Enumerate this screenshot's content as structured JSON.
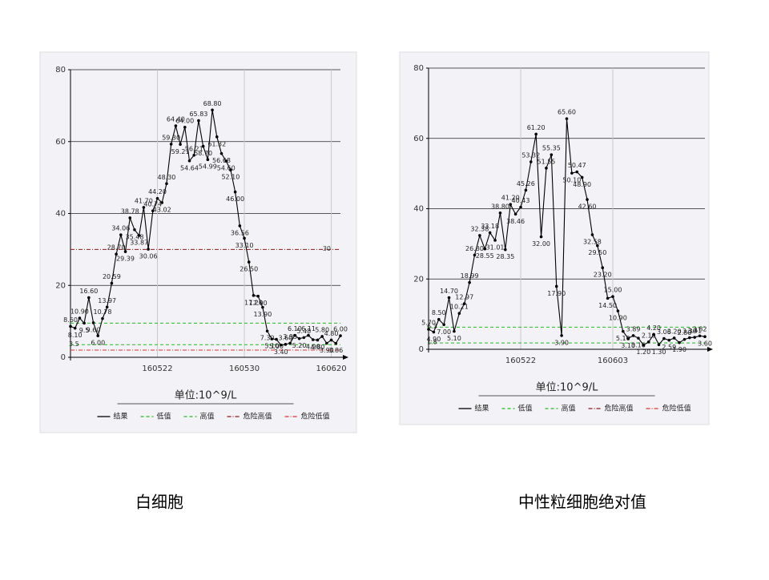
{
  "chart_data": [
    {
      "type": "line",
      "caption": "白细胞",
      "unit_label": "单位:10^9/L",
      "ylim": [
        0,
        80
      ],
      "yticks": [
        0,
        20,
        40,
        60,
        80
      ],
      "grid": true,
      "categories": [
        null,
        null,
        null,
        null,
        null,
        null,
        null,
        null,
        null,
        null,
        null,
        null,
        null,
        null,
        null,
        null,
        null,
        null,
        null,
        "160522",
        null,
        null,
        null,
        null,
        null,
        null,
        null,
        null,
        null,
        null,
        null,
        null,
        null,
        null,
        null,
        null,
        null,
        null,
        "160530",
        null,
        null,
        null,
        null,
        null,
        null,
        null,
        null,
        null,
        null,
        null,
        null,
        null,
        null,
        null,
        null,
        null,
        null,
        "160620",
        null,
        null
      ],
      "series": [
        {
          "name": "结果",
          "color": "#000000",
          "values": [
            8.6,
            8.1,
            10.9,
            9.5,
            16.6,
            9.6,
            6.0,
            10.78,
            13.97,
            20.59,
            28.7,
            34.06,
            29.39,
            38.78,
            35.48,
            33.87,
            41.7,
            30.06,
            40.74,
            44.2,
            43.02,
            48.3,
            59.3,
            64.4,
            59.21,
            64.0,
            54.64,
            56.21,
            65.83,
            58.7,
            54.99,
            68.8,
            61.32,
            56.68,
            54.6,
            52.1,
            46.0,
            36.56,
            33.1,
            26.5,
            17.2,
            17.0,
            13.9,
            7.3,
            5.1,
            5.0,
            3.4,
            3.6,
            3.93,
            6.1,
            5.2,
            5.48,
            6.11,
            4.9,
            4.8,
            5.8,
            3.9,
            4.8,
            3.86,
            6.0
          ],
          "value_labels": [
            "8.60",
            "8.10",
            "10.90",
            "9.5",
            "16.60",
            "9.60",
            "6.00",
            "10.78",
            "13.97",
            "20.59",
            "28.70",
            "34.06",
            "29.39",
            "38.78",
            "35.48",
            "33.87",
            "41.70",
            "30.06",
            "40.74",
            "44.20",
            "43.02",
            "48.30",
            "59.30",
            "64.40",
            "59.21",
            "64.00",
            "54.64",
            "56.21",
            "65.83",
            "58.70",
            "54.99",
            "68.80",
            "61.32",
            "56.68",
            "54.60",
            "52.10",
            "46.00",
            "36.56",
            "33.10",
            "26.50",
            "17.20",
            "17.00",
            "13.90",
            "7.30",
            "5.10",
            "5.00",
            "3.40",
            "3.60",
            "3.93",
            "6.10",
            "5.20",
            "5.48",
            "6.11",
            "4.90",
            "4.80",
            "5.80",
            "3.90",
            "4.80",
            "3.86",
            "6.00"
          ]
        }
      ],
      "reference_lines": [
        {
          "name": "低值",
          "color": "#22bb22",
          "value": 3.5,
          "show_label": true
        },
        {
          "name": "高值",
          "color": "#22bb22",
          "value": 9.5,
          "show_label": false
        },
        {
          "name": "危险高值",
          "color": "#8b1a1a",
          "value": 30,
          "show_label": true
        },
        {
          "name": "危险低值",
          "color": "#e03030",
          "value": 2,
          "show_label": false
        }
      ]
    },
    {
      "type": "line",
      "caption": "中性粒细胞绝对值",
      "unit_label": "单位:10^9/L",
      "ylim": [
        0,
        80
      ],
      "yticks": [
        0,
        20,
        40,
        60,
        80
      ],
      "grid": true,
      "categories": [
        null,
        null,
        null,
        null,
        null,
        null,
        null,
        null,
        null,
        null,
        null,
        null,
        null,
        null,
        null,
        null,
        null,
        null,
        "160522",
        null,
        null,
        null,
        null,
        null,
        null,
        null,
        null,
        null,
        null,
        null,
        null,
        null,
        null,
        null,
        null,
        null,
        "160603",
        null,
        null,
        null,
        null,
        null,
        null,
        null,
        null,
        null,
        null,
        null,
        null,
        null,
        null,
        null,
        null,
        null,
        null
      ],
      "series": [
        {
          "name": "结果",
          "color": "#000000",
          "values": [
            5.7,
            4.9,
            8.5,
            7.0,
            14.7,
            5.1,
            10.21,
            12.97,
            18.99,
            26.8,
            32.38,
            28.55,
            33.18,
            31.01,
            38.8,
            28.35,
            41.2,
            38.46,
            40.43,
            45.26,
            53.32,
            61.2,
            32.0,
            51.55,
            55.35,
            17.9,
            3.9,
            65.6,
            50.1,
            50.47,
            48.9,
            42.6,
            32.58,
            29.5,
            23.2,
            14.5,
            15.0,
            10.9,
            5.1,
            3.1,
            3.89,
            3.16,
            1.2,
            2.1,
            4.2,
            1.3,
            3.06,
            2.59,
            3.2,
            1.9,
            2.8,
            3.3,
            3.41,
            3.82,
            3.6
          ],
          "value_labels": [
            "5.70",
            "4.90",
            "8.50",
            "7.00",
            "14.70",
            "5.10",
            "10.21",
            "12.97",
            "18.99",
            "26.80",
            "32.38",
            "28.55",
            "33.18",
            "31.01",
            "38.80",
            "28.35",
            "41.20",
            "38.46",
            "40.43",
            "45.26",
            "53.32",
            "61.20",
            "32.00",
            "51.55",
            "55.35",
            "17.90",
            "3.90",
            "65.60",
            "50.10",
            "50.47",
            "48.90",
            "42.60",
            "32.58",
            "29.50",
            "23.20",
            "14.50",
            "15.00",
            "10.90",
            "5.10",
            "3.10",
            "3.89",
            "3.16",
            "1.20",
            "2.10",
            "4.20",
            "1.30",
            "3.06",
            "2.59",
            "3.20",
            "1.90",
            "2.80",
            "3.30",
            "3.41",
            "3.82",
            "3.60"
          ]
        }
      ],
      "reference_lines": [
        {
          "name": "低值",
          "color": "#22bb22",
          "value": 1.8,
          "show_label": true
        },
        {
          "name": "高值",
          "color": "#22bb22",
          "value": 6.3,
          "show_label": true
        },
        {
          "name": "危险高值",
          "color": "#8b1a1a"
        },
        {
          "name": "危险低值",
          "color": "#e03030"
        }
      ]
    }
  ]
}
